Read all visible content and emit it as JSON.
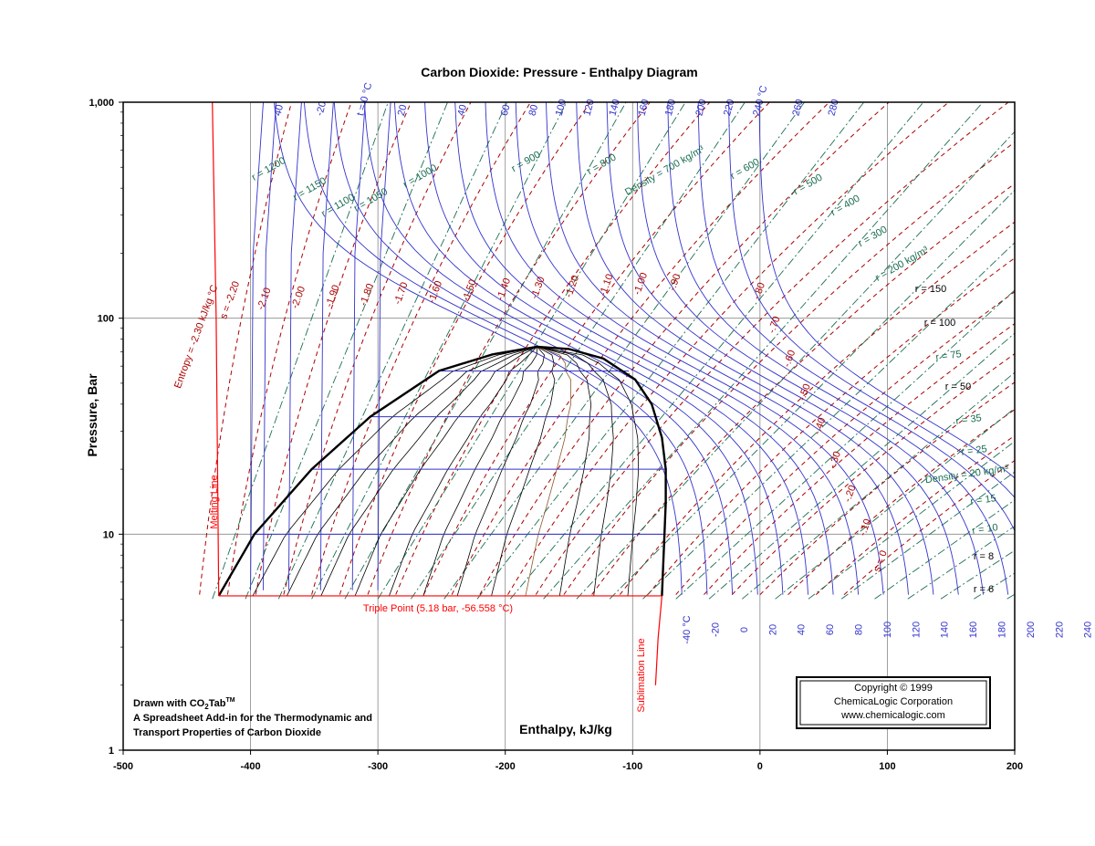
{
  "chart_data": {
    "type": "line",
    "title": "Carbon Dioxide: Pressure - Enthalpy Diagram",
    "xlabel": "Enthalpy, kJ/kg",
    "ylabel": "Pressure, Bar",
    "xlim": [
      -500,
      200
    ],
    "ylim": [
      1,
      1000
    ],
    "yscale": "log",
    "grid": true,
    "x_ticks": [
      -500,
      -400,
      -300,
      -200,
      -100,
      0,
      100,
      200
    ],
    "x_tick_labels": [
      "-500",
      "-400",
      "-300",
      "-200",
      "-100",
      "0",
      "100",
      "200"
    ],
    "y_ticks": [
      1,
      10,
      100,
      1000
    ],
    "y_tick_labels": [
      "1",
      "10",
      "100",
      "1,000"
    ],
    "colors": {
      "saturation": "#000000",
      "isotherm": "#3333cc",
      "isentrope": "#aa0000",
      "isochore": "#1a6e50",
      "boundary": "#ff0000",
      "quality": "#000000"
    },
    "saturation_dome": {
      "liquid": [
        [
          -425,
          5.18
        ],
        [
          -397,
          10
        ],
        [
          -352,
          20
        ],
        [
          -306,
          35
        ],
        [
          -252,
          57
        ],
        [
          -210,
          68
        ],
        [
          -175,
          73.8
        ]
      ],
      "vapor": [
        [
          -175,
          73.8
        ],
        [
          -150,
          72
        ],
        [
          -123,
          65
        ],
        [
          -98,
          52
        ],
        [
          -85,
          40
        ],
        [
          -77,
          28
        ],
        [
          -74,
          20
        ],
        [
          -74,
          14
        ],
        [
          -75,
          10
        ],
        [
          -77,
          5.18
        ]
      ]
    },
    "isobars_in_dome": [
      {
        "pressure": 57,
        "h_liquid": -252,
        "h_vapor": -103
      },
      {
        "pressure": 35,
        "h_liquid": -306,
        "h_vapor": -79
      },
      {
        "pressure": 20,
        "h_liquid": -352,
        "h_vapor": -73
      },
      {
        "pressure": 10,
        "h_liquid": -397,
        "h_vapor": -74
      }
    ],
    "triple_point": {
      "pressure": 5.18,
      "h_liquid": -425,
      "h_vapor": -77
    },
    "melting_line": [
      [
        -425,
        5.18
      ],
      [
        -427,
        100
      ],
      [
        -430,
        1000
      ]
    ],
    "sublimation_line": [
      [
        -77,
        5.18
      ],
      [
        -80,
        3.3
      ],
      [
        -82,
        2.0
      ]
    ],
    "isotherm_labels": [
      {
        "label": "40",
        "h": -381,
        "p": 860
      },
      {
        "label": "-20",
        "h": -348,
        "p": 860
      },
      {
        "label": "t = 0 °C",
        "h": -316,
        "p": 860
      },
      {
        "label": "-20",
        "h": -344,
        "p": 860
      },
      {
        "label": "20",
        "h": -284,
        "p": 860
      },
      {
        "label": "40",
        "h": -237,
        "p": 860
      },
      {
        "label": "60",
        "h": -203,
        "p": 860
      },
      {
        "label": "80",
        "h": -181,
        "p": 860
      },
      {
        "label": "100",
        "h": -160,
        "p": 860
      },
      {
        "label": "120",
        "h": -138,
        "p": 860
      },
      {
        "label": "140",
        "h": -118,
        "p": 860
      },
      {
        "label": "160",
        "h": -95,
        "p": 860
      },
      {
        "label": "180",
        "h": -74,
        "p": 860
      },
      {
        "label": "200",
        "h": -50,
        "p": 860
      },
      {
        "label": "220",
        "h": -28,
        "p": 860
      },
      {
        "label": "240 °C",
        "h": -5,
        "p": 860
      },
      {
        "label": "260",
        "h": 26,
        "p": 860
      },
      {
        "label": "280",
        "h": 54,
        "p": 860
      }
    ],
    "isotherm_bottom_labels": [
      "-40 °C",
      "-20",
      "0",
      "20",
      "40",
      "60",
      "80",
      "100",
      "120",
      "140",
      "160",
      "180",
      "200",
      "220",
      "240"
    ],
    "entropy_labels": [
      "Entropy = -2.30 kJ/kg °C",
      "s = -2.20",
      "-2.10",
      "-2.00",
      "-1.90",
      "-1.80",
      "-1.70",
      "-1.60",
      "-1.50",
      "-1.40",
      "-1.30",
      "-1.20",
      "-1.10",
      "-1.00",
      "-.90",
      "-.80",
      "-.70",
      "-.60",
      "-.50",
      "-.40",
      "-.30",
      "-.20",
      "-.10",
      "s = 0"
    ],
    "density_labels": [
      "r = 1200",
      "r = 1150",
      "r = 1100",
      "r = 1050",
      "r = 1000",
      "r = 900",
      "r = 800",
      "Density = 700 kg/m³",
      "r = 600",
      "r = 500",
      "r = 400",
      "r = 300",
      "r = 200 kg/m³",
      "r = 150",
      "r = 100",
      "r = 75",
      "r = 50",
      "r = 35",
      "r = 25",
      "Density = 20 kg/m³",
      "r = 15",
      "r = 10",
      "r = 8",
      "r = 6"
    ]
  },
  "annotations": {
    "triple_point": "Triple Point (5.18 bar, -56.558 °C)",
    "melting_line": "Melting Line",
    "sublimation_line": "Sublimation Line"
  },
  "footer_note": {
    "line1_prefix": "Drawn with CO",
    "line1_sub": "2",
    "line1_mid": "Tab",
    "line1_sup": "TM",
    "line2": "A Spreadsheet Add-in for the Thermodynamic and",
    "line3": "Transport Properties of Carbon Dioxide"
  },
  "copyright": {
    "line1": "Copyright © 1999",
    "line2": "ChemicaLogic Corporation",
    "line3": "www.chemicalogic.com"
  }
}
